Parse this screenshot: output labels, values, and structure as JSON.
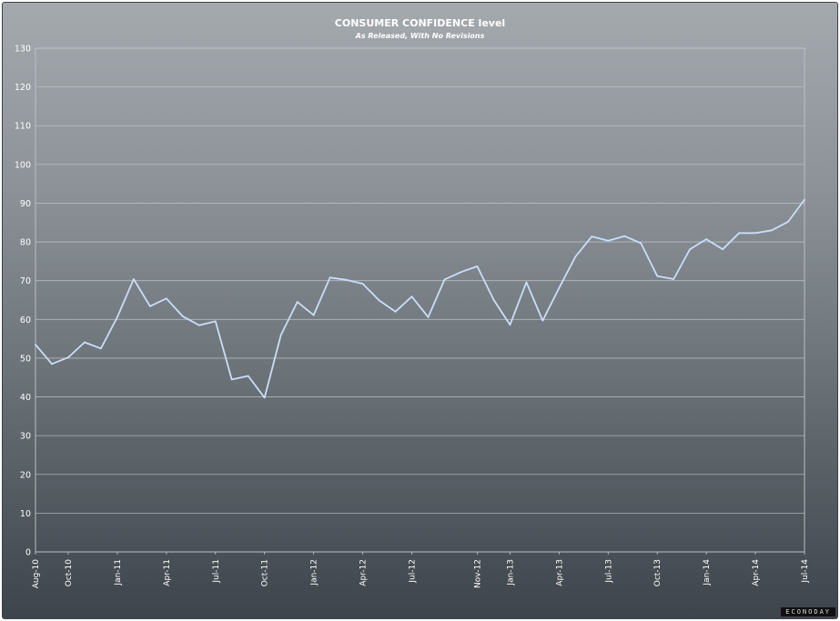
{
  "chart_data": {
    "type": "line",
    "title": "CONSUMER CONFIDENCE level",
    "subtitle": "As Released, With No Revisions",
    "xlabel": "",
    "ylabel": "",
    "ylim": [
      0,
      130
    ],
    "yticks": [
      0,
      10,
      20,
      30,
      40,
      50,
      60,
      70,
      80,
      90,
      100,
      110,
      120,
      130
    ],
    "grid": true,
    "legend": "none",
    "x": [
      "Aug-10",
      "Sep-10",
      "Oct-10",
      "Nov-10",
      "Dec-10",
      "Jan-11",
      "Feb-11",
      "Mar-11",
      "Apr-11",
      "May-11",
      "Jun-11",
      "Jul-11",
      "Aug-11",
      "Sep-11",
      "Oct-11",
      "Nov-11",
      "Dec-11",
      "Jan-12",
      "Feb-12",
      "Mar-12",
      "Apr-12",
      "May-12",
      "Jun-12",
      "Jul-12",
      "Aug-12",
      "Sep-12",
      "Oct-12",
      "Nov-12",
      "Dec-12",
      "Jan-13",
      "Feb-13",
      "Mar-13",
      "Apr-13",
      "May-13",
      "Jun-13",
      "Jul-13",
      "Aug-13",
      "Sep-13",
      "Oct-13",
      "Nov-13",
      "Dec-13",
      "Jan-14",
      "Feb-14",
      "Mar-14",
      "Apr-14",
      "May-14",
      "Jun-14",
      "Jul-14"
    ],
    "xtick_labels": [
      "Aug-10",
      "Oct-10",
      "Jan-11",
      "Apr-11",
      "Jul-11",
      "Oct-11",
      "Jan-12",
      "Apr-12",
      "Jul-12",
      "Nov-12",
      "Jan-13",
      "Apr-13",
      "Jul-13",
      "Oct-13",
      "Jan-14",
      "Apr-14",
      "Jul-14"
    ],
    "series": [
      {
        "values": [
          53.5,
          48.5,
          50.2,
          54.1,
          52.5,
          60.6,
          70.4,
          63.4,
          65.4,
          60.8,
          58.5,
          59.5,
          44.5,
          45.4,
          39.8,
          56.0,
          64.5,
          61.1,
          70.8,
          70.2,
          69.2,
          64.9,
          62.0,
          65.9,
          60.6,
          70.3,
          72.2,
          73.7,
          65.1,
          58.6,
          69.6,
          59.7,
          68.1,
          76.2,
          81.4,
          80.3,
          81.5,
          79.7,
          71.2,
          70.4,
          78.1,
          80.7,
          78.1,
          82.3,
          82.3,
          83.0,
          85.2,
          90.9
        ],
        "color": "#c9defa"
      }
    ],
    "watermark": "ECONODAY"
  }
}
